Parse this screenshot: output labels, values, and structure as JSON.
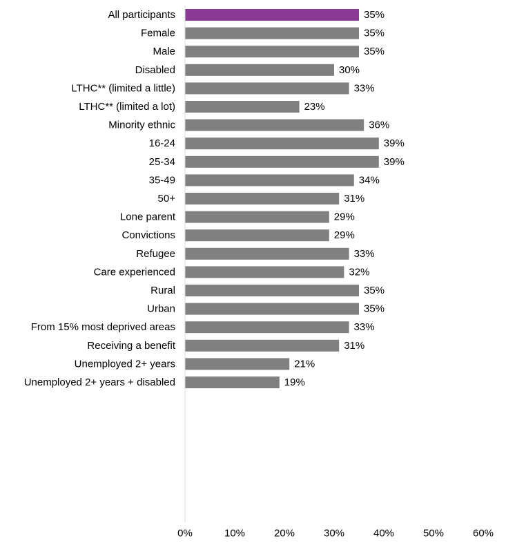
{
  "chart_data": {
    "type": "bar",
    "orientation": "horizontal",
    "title": "",
    "xlabel": "",
    "ylabel": "",
    "xlim": [
      0,
      60
    ],
    "x_ticks": [
      "0%",
      "10%",
      "20%",
      "30%",
      "40%",
      "50%",
      "60%"
    ],
    "grid": false,
    "legend": "none",
    "highlight_color": "#8b3a95",
    "bar_color": "#808080",
    "groups": [
      [
        {
          "label": "All participants",
          "value": 35,
          "display": "35%",
          "highlight": true
        }
      ],
      [
        {
          "label": "Female",
          "value": 35,
          "display": "35%"
        },
        {
          "label": "Male",
          "value": 35,
          "display": "35%"
        }
      ],
      [
        {
          "label": "Disabled",
          "value": 30,
          "display": "30%"
        },
        {
          "label": "LTHC** (limited a little)",
          "value": 33,
          "display": "33%"
        },
        {
          "label": "LTHC** (limited a lot)",
          "value": 23,
          "display": "23%"
        }
      ],
      [
        {
          "label": "Minority ethnic",
          "value": 36,
          "display": "36%"
        }
      ],
      [
        {
          "label": "16-24",
          "value": 39,
          "display": "39%"
        },
        {
          "label": "25-34",
          "value": 39,
          "display": "39%"
        },
        {
          "label": "35-49",
          "value": 34,
          "display": "34%"
        },
        {
          "label": "50+",
          "value": 31,
          "display": "31%"
        }
      ],
      [
        {
          "label": "Lone parent",
          "value": 29,
          "display": "29%"
        },
        {
          "label": "Convictions",
          "value": 29,
          "display": "29%"
        },
        {
          "label": "Refugee",
          "value": 33,
          "display": "33%"
        },
        {
          "label": "Care experienced",
          "value": 32,
          "display": "32%"
        }
      ],
      [
        {
          "label": "Rural",
          "value": 35,
          "display": "35%"
        },
        {
          "label": "Urban",
          "value": 35,
          "display": "35%"
        }
      ],
      [
        {
          "label": "From 15% most deprived areas",
          "value": 33,
          "display": "33%"
        },
        {
          "label": "Receiving a benefit",
          "value": 31,
          "display": "31%"
        },
        {
          "label": "Unemployed 2+ years",
          "value": 21,
          "display": "21%"
        },
        {
          "label": "Unemployed 2+ years + disabled",
          "value": 19,
          "display": "19%"
        }
      ]
    ]
  }
}
